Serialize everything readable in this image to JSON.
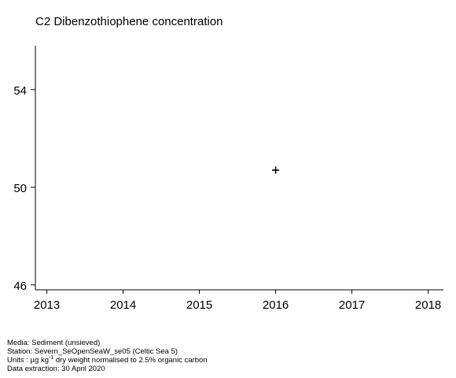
{
  "chart_data": {
    "type": "scatter",
    "title": "C2 Dibenzothiophene concentration",
    "xlabel": "",
    "ylabel": "",
    "xlim": [
      2012.85,
      2018.2
    ],
    "ylim": [
      45.8,
      55.8
    ],
    "x_ticks": [
      "2013",
      "2014",
      "2015",
      "2016",
      "2017",
      "2018"
    ],
    "y_ticks": [
      "46",
      "50",
      "54"
    ],
    "series": [
      {
        "marker": "plus",
        "color": "#000000",
        "points": [
          {
            "x": 2016,
            "y": 50.7
          }
        ]
      }
    ],
    "grid": false
  },
  "footer": {
    "media": "Media: Sediment (unsieved)",
    "station": "Station: Severn_SeOpenSeaW_se05 (Celtic Sea 5)",
    "units_prefix": "Units : µg kg",
    "units_sup": "-1",
    "units_suffix": " dry weight normalised to 2.5% organic carbon",
    "extraction": "Data extraction: 30 April 2020"
  }
}
